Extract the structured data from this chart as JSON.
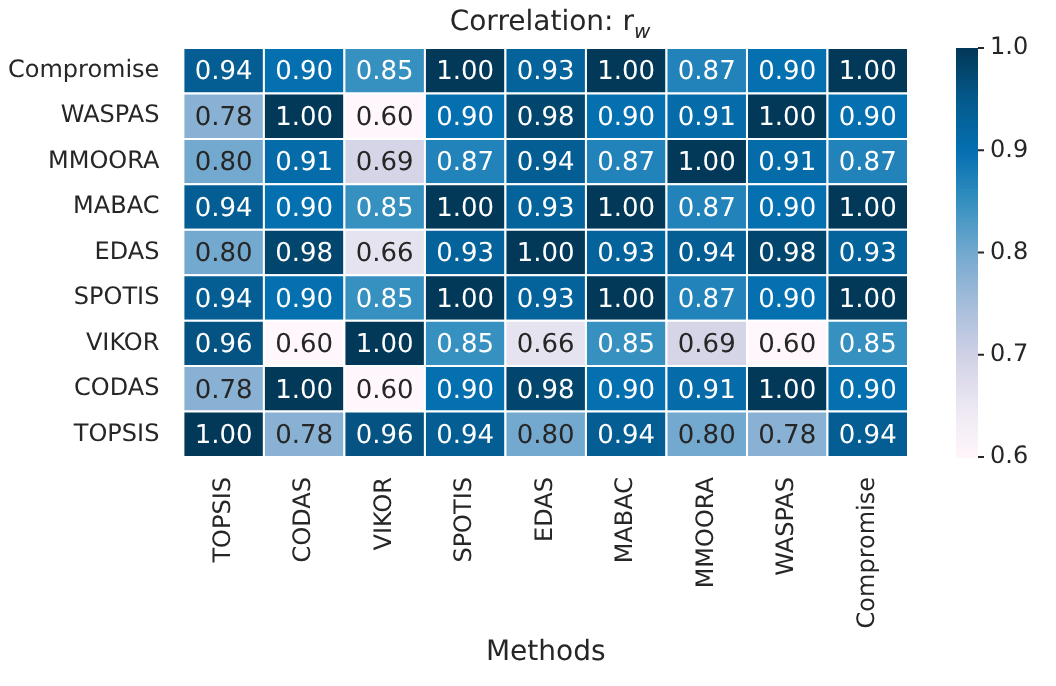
{
  "chart_data": {
    "type": "heatmap",
    "title": "Correlation: r$_{w}$",
    "xlabel": "Methods",
    "categories": [
      "TOPSIS",
      "CODAS",
      "VIKOR",
      "SPOTIS",
      "EDAS",
      "MABAC",
      "MMOORA",
      "WASPAS",
      "Compromise"
    ],
    "y_categories": [
      "Compromise",
      "WASPAS",
      "MMOORA",
      "MABAC",
      "EDAS",
      "SPOTIS",
      "VIKOR",
      "CODAS",
      "TOPSIS"
    ],
    "cells": [
      [
        0.94,
        0.9,
        0.85,
        1.0,
        0.93,
        1.0,
        0.87,
        0.9,
        1.0
      ],
      [
        0.78,
        1.0,
        0.6,
        0.9,
        0.98,
        0.9,
        0.91,
        1.0,
        0.9
      ],
      [
        0.8,
        0.91,
        0.69,
        0.87,
        0.94,
        0.87,
        1.0,
        0.91,
        0.87
      ],
      [
        0.94,
        0.9,
        0.85,
        1.0,
        0.93,
        1.0,
        0.87,
        0.9,
        1.0
      ],
      [
        0.8,
        0.98,
        0.66,
        0.93,
        1.0,
        0.93,
        0.94,
        0.98,
        0.93
      ],
      [
        0.94,
        0.9,
        0.85,
        1.0,
        0.93,
        1.0,
        0.87,
        0.9,
        1.0
      ],
      [
        0.96,
        0.6,
        1.0,
        0.85,
        0.66,
        0.85,
        0.69,
        0.6,
        0.85
      ],
      [
        0.78,
        1.0,
        0.6,
        0.9,
        0.98,
        0.9,
        0.91,
        1.0,
        0.9
      ],
      [
        1.0,
        0.78,
        0.96,
        0.94,
        0.8,
        0.94,
        0.8,
        0.78,
        0.94
      ]
    ],
    "cell_labels": [
      [
        "0.94",
        "0.90",
        "0.85",
        "1.00",
        "0.93",
        "1.00",
        "0.87",
        "0.90",
        "1.00"
      ],
      [
        "0.78",
        "1.00",
        "0.60",
        "0.90",
        "0.98",
        "0.90",
        "0.91",
        "1.00",
        "0.90"
      ],
      [
        "0.80",
        "0.91",
        "0.69",
        "0.87",
        "0.94",
        "0.87",
        "1.00",
        "0.91",
        "0.87"
      ],
      [
        "0.94",
        "0.90",
        "0.85",
        "1.00",
        "0.93",
        "1.00",
        "0.87",
        "0.90",
        "1.00"
      ],
      [
        "0.80",
        "0.98",
        "0.66",
        "0.93",
        "1.00",
        "0.93",
        "0.94",
        "0.98",
        "0.93"
      ],
      [
        "0.94",
        "0.90",
        "0.85",
        "1.00",
        "0.93",
        "1.00",
        "0.87",
        "0.90",
        "1.00"
      ],
      [
        "0.96",
        "0.60",
        "1.00",
        "0.85",
        "0.66",
        "0.85",
        "0.69",
        "0.60",
        "0.85"
      ],
      [
        "0.78",
        "1.00",
        "0.60",
        "0.90",
        "0.98",
        "0.90",
        "0.91",
        "1.00",
        "0.90"
      ],
      [
        "1.00",
        "0.78",
        "0.96",
        "0.94",
        "0.80",
        "0.94",
        "0.80",
        "0.78",
        "0.94"
      ]
    ],
    "clim": [
      0.6,
      1.0
    ],
    "cticks": [
      0.6,
      0.7,
      0.8,
      0.9,
      {
        "value": 1.0,
        "label": "1.0"
      }
    ],
    "data_labels": true
  }
}
